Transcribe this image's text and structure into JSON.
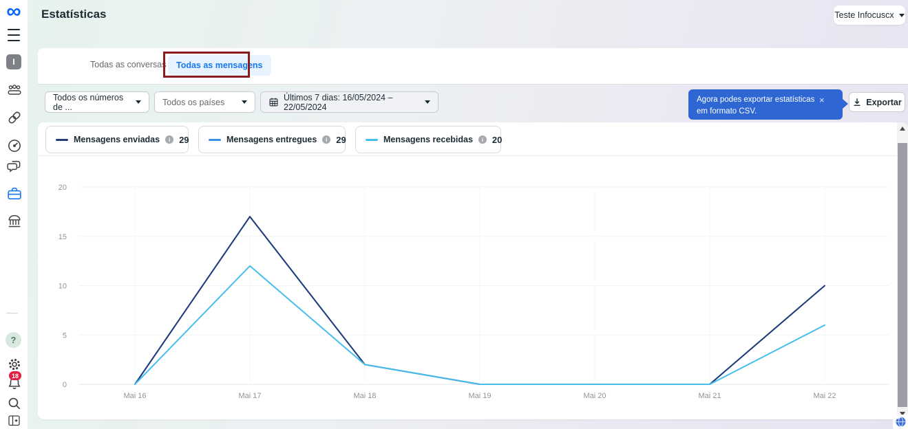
{
  "header": {
    "title": "Estatísticas",
    "account_button": "Teste Infocuscx"
  },
  "sidebar": {
    "logo_glyph": "∞",
    "avatar_initial": "I",
    "help_glyph": "?",
    "notifications_badge": "18"
  },
  "tabs": {
    "conversas": "Todas as conversas",
    "mensagens": "Todas as mensagens"
  },
  "filters": {
    "numbers": "Todos os números de ...",
    "countries": "Todos os países",
    "date_range": "Últimos 7 dias: 16/05/2024 – 22/05/2024"
  },
  "csv_tooltip": {
    "text": "Agora podes exportar estatísticas em formato CSV.",
    "close": "×"
  },
  "export_button": {
    "label": "Exportar"
  },
  "legend": {
    "info_glyph": "i"
  },
  "chart_data": {
    "type": "line",
    "x": [
      "Mai 16",
      "Mai 17",
      "Mai 18",
      "Mai 19",
      "Mai 20",
      "Mai 21",
      "Mai 22"
    ],
    "series": [
      {
        "name": "Mensagens enviadas",
        "total": 29,
        "color": "#233c78",
        "values": [
          0,
          17,
          2,
          0,
          0,
          0,
          10
        ]
      },
      {
        "name": "Mensagens entregues",
        "total": 29,
        "color": "#3990e5",
        "values": [
          0,
          17,
          2,
          0,
          0,
          0,
          10
        ]
      },
      {
        "name": "Mensagens recebidas",
        "total": 20,
        "color": "#45beee",
        "values": [
          0,
          12,
          2,
          0,
          0,
          0,
          6
        ]
      }
    ],
    "draw_order": [
      1,
      0,
      2
    ],
    "ylim": [
      0,
      20
    ],
    "yticks": [
      0,
      5,
      10,
      15,
      20
    ],
    "grid": true,
    "legend_position": "top",
    "tick_color": "#8d9399",
    "grid_color": "#f2f3f5",
    "baseline_color": "#e3e6ea"
  }
}
